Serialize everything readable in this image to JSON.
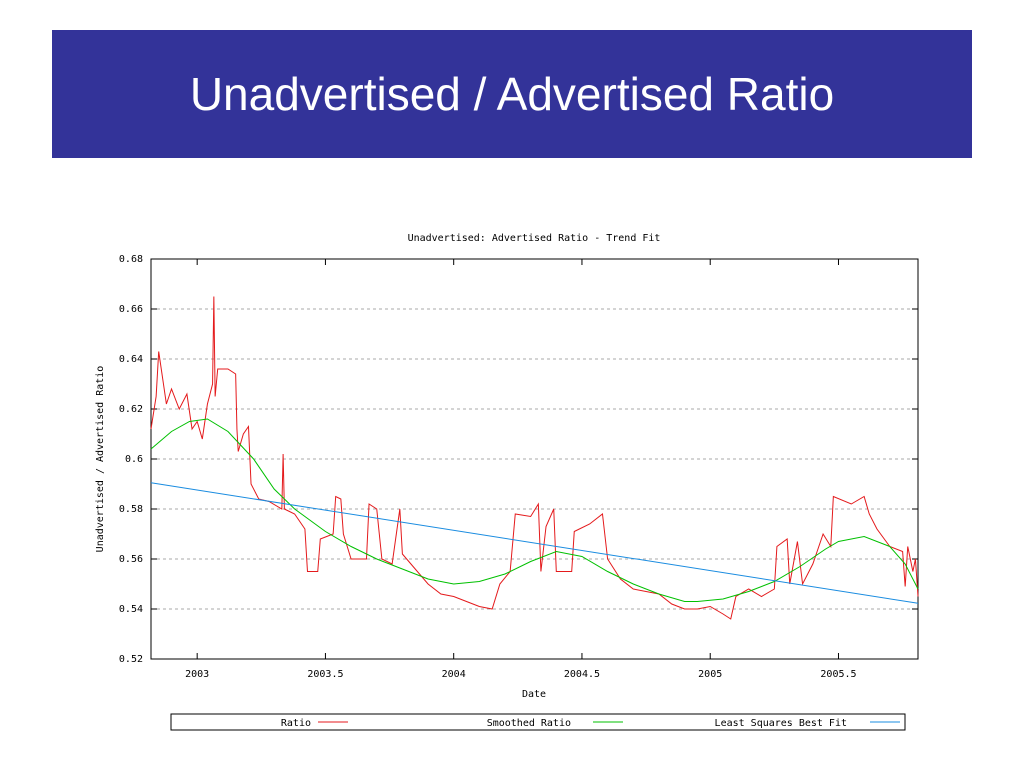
{
  "slide": {
    "title": "Unadvertised / Advertised Ratio"
  },
  "chart_data": {
    "type": "line",
    "title": "Unadvertised: Advertised Ratio - Trend Fit",
    "x_label": "Date",
    "y_label": "Unadvertised / Advertised Ratio",
    "xlim": [
      2002.82,
      2005.81
    ],
    "ylim": [
      0.52,
      0.68
    ],
    "xticks": [
      2003,
      2003.5,
      2004,
      2004.5,
      2005,
      2005.5
    ],
    "yticks": [
      0.52,
      0.54,
      0.56,
      0.58,
      0.6,
      0.62,
      0.64,
      0.66,
      0.68
    ],
    "grid": true,
    "legend": "bottom",
    "series": [
      {
        "name": "Ratio",
        "color": "#e41a1c",
        "x": [
          2002.82,
          2002.84,
          2002.85,
          2002.88,
          2002.9,
          2002.93,
          2002.96,
          2002.98,
          2003.0,
          2003.02,
          2003.04,
          2003.06,
          2003.065,
          2003.07,
          2003.08,
          2003.12,
          2003.15,
          2003.155,
          2003.16,
          2003.18,
          2003.2,
          2003.21,
          2003.24,
          2003.28,
          2003.33,
          2003.335,
          2003.34,
          2003.38,
          2003.42,
          2003.43,
          2003.47,
          2003.48,
          2003.53,
          2003.54,
          2003.56,
          2003.57,
          2003.6,
          2003.66,
          2003.67,
          2003.7,
          2003.72,
          2003.76,
          2003.79,
          2003.8,
          2003.85,
          2003.9,
          2003.95,
          2004.0,
          2004.05,
          2004.1,
          2004.15,
          2004.18,
          2004.22,
          2004.24,
          2004.3,
          2004.33,
          2004.34,
          2004.36,
          2004.39,
          2004.4,
          2004.46,
          2004.47,
          2004.53,
          2004.58,
          2004.6,
          2004.65,
          2004.7,
          2004.8,
          2004.85,
          2004.9,
          2004.95,
          2005.0,
          2005.05,
          2005.08,
          2005.1,
          2005.15,
          2005.2,
          2005.25,
          2005.26,
          2005.3,
          2005.31,
          2005.34,
          2005.36,
          2005.4,
          2005.44,
          2005.47,
          2005.48,
          2005.55,
          2005.6,
          2005.62,
          2005.65,
          2005.7,
          2005.75,
          2005.76,
          2005.77,
          2005.79,
          2005.8,
          2005.81
        ],
        "values": [
          0.612,
          0.625,
          0.643,
          0.622,
          0.628,
          0.62,
          0.626,
          0.612,
          0.615,
          0.608,
          0.622,
          0.63,
          0.665,
          0.625,
          0.636,
          0.636,
          0.634,
          0.612,
          0.603,
          0.61,
          0.613,
          0.59,
          0.584,
          0.583,
          0.58,
          0.602,
          0.58,
          0.578,
          0.572,
          0.555,
          0.555,
          0.568,
          0.57,
          0.585,
          0.584,
          0.57,
          0.56,
          0.56,
          0.582,
          0.58,
          0.56,
          0.558,
          0.58,
          0.562,
          0.556,
          0.55,
          0.546,
          0.545,
          0.543,
          0.541,
          0.54,
          0.55,
          0.555,
          0.578,
          0.577,
          0.582,
          0.555,
          0.573,
          0.58,
          0.555,
          0.555,
          0.571,
          0.574,
          0.578,
          0.56,
          0.552,
          0.548,
          0.546,
          0.542,
          0.54,
          0.54,
          0.541,
          0.538,
          0.536,
          0.545,
          0.548,
          0.545,
          0.548,
          0.565,
          0.568,
          0.55,
          0.567,
          0.55,
          0.558,
          0.57,
          0.565,
          0.585,
          0.582,
          0.585,
          0.578,
          0.572,
          0.565,
          0.563,
          0.549,
          0.565,
          0.555,
          0.56,
          0.545
        ]
      },
      {
        "name": "Smoothed Ratio",
        "color": "#00c000",
        "x": [
          2002.82,
          2002.9,
          2002.97,
          2003.04,
          2003.12,
          2003.22,
          2003.3,
          2003.38,
          2003.5,
          2003.6,
          2003.7,
          2003.8,
          2003.9,
          2004.0,
          2004.1,
          2004.2,
          2004.3,
          2004.4,
          2004.5,
          2004.6,
          2004.7,
          2004.8,
          2004.9,
          2004.95,
          2005.05,
          2005.15,
          2005.25,
          2005.35,
          2005.45,
          2005.5,
          2005.6,
          2005.7,
          2005.76,
          2005.81
        ],
        "values": [
          0.604,
          0.611,
          0.615,
          0.616,
          0.611,
          0.6,
          0.588,
          0.58,
          0.571,
          0.565,
          0.56,
          0.556,
          0.552,
          0.55,
          0.551,
          0.554,
          0.559,
          0.563,
          0.561,
          0.555,
          0.55,
          0.546,
          0.543,
          0.543,
          0.544,
          0.547,
          0.551,
          0.557,
          0.564,
          0.567,
          0.569,
          0.565,
          0.558,
          0.548
        ]
      },
      {
        "name": "Least Squares Best Fit",
        "color": "#1a8ce0",
        "x": [
          2002.82,
          2005.81
        ],
        "values": [
          0.5905,
          0.5423
        ]
      }
    ]
  }
}
